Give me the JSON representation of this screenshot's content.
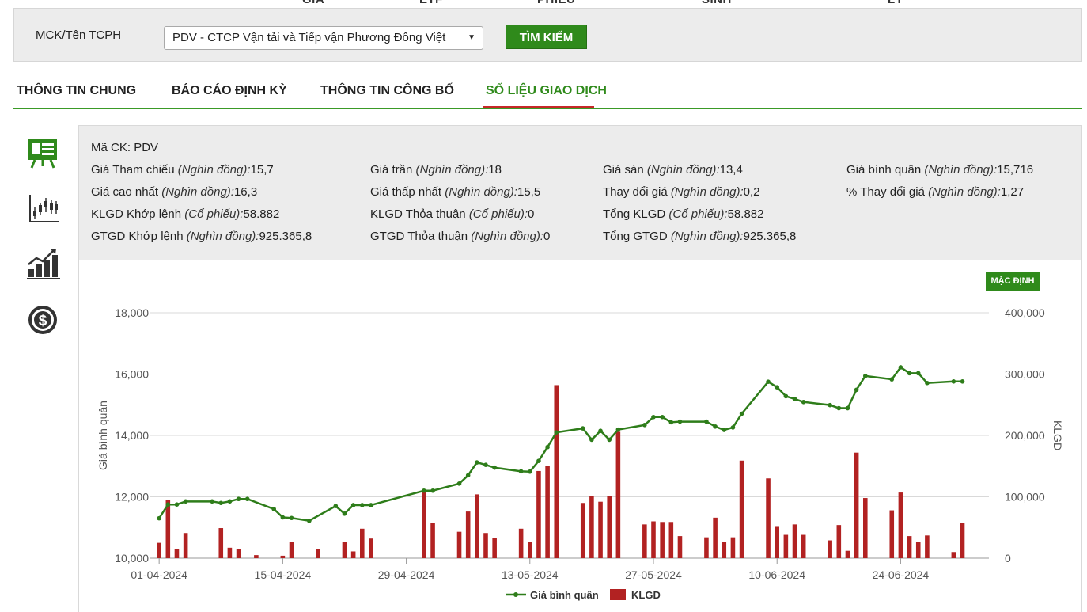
{
  "top_nav": [
    "GIÁ",
    "ETF",
    "PHIẾU",
    "SINH",
    "LÝ"
  ],
  "search": {
    "label": "MCK/Tên TCPH",
    "selected": "PDV - CTCP Vận tải và Tiếp vận Phương Đông Việt",
    "button": "TÌM KIẾM"
  },
  "tabs": [
    {
      "label": "THÔNG TIN CHUNG",
      "active": false
    },
    {
      "label": "BÁO CÁO ĐỊNH KỲ",
      "active": false
    },
    {
      "label": "THÔNG TIN CÔNG BỐ",
      "active": false
    },
    {
      "label": "SỐ LIỆU GIAO DỊCH",
      "active": true
    }
  ],
  "side_icons": [
    "presentation-icon",
    "candlestick-chart-icon",
    "growth-bars-icon",
    "dollar-circle-icon"
  ],
  "info": {
    "code_label": "Mã CK:",
    "code": "PDV",
    "rows": [
      [
        {
          "label": "Giá Tham chiếu",
          "unit": "(Nghìn đồng):",
          "value": "15,7"
        },
        {
          "label": "Giá trần",
          "unit": "(Nghìn đồng):",
          "value": "18"
        },
        {
          "label": "Giá sàn",
          "unit": "(Nghìn đồng):",
          "value": "13,4"
        },
        {
          "label": "Giá bình quân",
          "unit": "(Nghìn đồng):",
          "value": "15,716"
        }
      ],
      [
        {
          "label": "Giá cao nhất",
          "unit": "(Nghìn đồng):",
          "value": "16,3"
        },
        {
          "label": "Giá thấp nhất",
          "unit": "(Nghìn đồng):",
          "value": "15,5"
        },
        {
          "label": "Thay đổi giá",
          "unit": "(Nghìn đồng):",
          "value": "0,2"
        },
        {
          "label": "% Thay đổi giá",
          "unit": "(Nghìn đồng):",
          "value": "1,27"
        }
      ],
      [
        {
          "label": "KLGD Khớp lệnh",
          "unit": "(Cổ phiếu):",
          "value": "58.882"
        },
        {
          "label": "KLGD Thỏa thuận",
          "unit": "(Cổ phiếu):",
          "value": "0"
        },
        {
          "label": "Tổng KLGD",
          "unit": "(Cổ phiếu):",
          "value": "58.882"
        }
      ],
      [
        {
          "label": "GTGD Khớp lệnh",
          "unit": "(Nghìn đồng):",
          "value": "925.365,8"
        },
        {
          "label": "GTGD Thỏa thuận",
          "unit": "(Nghìn đồng):",
          "value": "0"
        },
        {
          "label": "Tổng GTGD",
          "unit": "(Nghìn đồng):",
          "value": "925.365,8"
        }
      ]
    ]
  },
  "chart_controls": {
    "default_button": "MẶC ĐỊNH"
  },
  "colors": {
    "line": "#2e7d1a",
    "bar": "#b22222",
    "accent": "#2f8a1b",
    "tab_underline": "#c62828"
  },
  "chart_data": {
    "type": "bar+line",
    "x_ticks": [
      "01-04-2024",
      "15-04-2024",
      "29-04-2024",
      "13-05-2024",
      "27-05-2024",
      "10-06-2024",
      "24-06-2024"
    ],
    "x_range_days": [
      -1,
      94
    ],
    "y_left": {
      "label": "Giá bình quân",
      "range": [
        10000,
        18000
      ],
      "ticks": [
        "10,000",
        "12,000",
        "14,000",
        "16,000",
        "18,000"
      ]
    },
    "y_right": {
      "label": "KLGD",
      "range": [
        0,
        400000
      ],
      "ticks": [
        "0",
        "100,000",
        "200,000",
        "300,000",
        "400,000"
      ]
    },
    "grid": true,
    "legend_position": "bottom",
    "series": [
      {
        "name": "Giá bình quân",
        "kind": "line",
        "axis": "left",
        "points": [
          [
            0,
            11300
          ],
          [
            1,
            11750
          ],
          [
            2,
            11750
          ],
          [
            3,
            11850
          ],
          [
            6,
            11850
          ],
          [
            7,
            11800
          ],
          [
            8,
            11850
          ],
          [
            9,
            11930
          ],
          [
            10,
            11930
          ],
          [
            13,
            11600
          ],
          [
            14,
            11330
          ],
          [
            15,
            11310
          ],
          [
            17,
            11220
          ],
          [
            20,
            11700
          ],
          [
            21,
            11450
          ],
          [
            22,
            11730
          ],
          [
            23,
            11730
          ],
          [
            24,
            11730
          ],
          [
            30,
            12200
          ],
          [
            31,
            12200
          ],
          [
            34,
            12430
          ],
          [
            35,
            12700
          ],
          [
            36,
            13120
          ],
          [
            37,
            13040
          ],
          [
            38,
            12950
          ],
          [
            41,
            12830
          ],
          [
            42,
            12820
          ],
          [
            43,
            13170
          ],
          [
            44,
            13620
          ],
          [
            45,
            14100
          ],
          [
            48,
            14230
          ],
          [
            49,
            13860
          ],
          [
            50,
            14150
          ],
          [
            51,
            13860
          ],
          [
            52,
            14190
          ],
          [
            55,
            14340
          ],
          [
            56,
            14600
          ],
          [
            57,
            14600
          ],
          [
            58,
            14430
          ],
          [
            59,
            14450
          ],
          [
            62,
            14450
          ],
          [
            63,
            14290
          ],
          [
            64,
            14180
          ],
          [
            65,
            14260
          ],
          [
            66,
            14710
          ],
          [
            69,
            15750
          ],
          [
            70,
            15570
          ],
          [
            71,
            15280
          ],
          [
            72,
            15190
          ],
          [
            73,
            15090
          ],
          [
            76,
            14990
          ],
          [
            77,
            14890
          ],
          [
            78,
            14890
          ],
          [
            79,
            15490
          ],
          [
            80,
            15940
          ],
          [
            83,
            15830
          ],
          [
            84,
            16220
          ],
          [
            85,
            16030
          ],
          [
            86,
            16030
          ],
          [
            87,
            15710
          ],
          [
            90,
            15760
          ],
          [
            91,
            15760
          ]
        ]
      },
      {
        "name": "KLGD",
        "kind": "bar",
        "axis": "right",
        "points": [
          [
            0,
            25000
          ],
          [
            1,
            95000
          ],
          [
            2,
            15000
          ],
          [
            3,
            41000
          ],
          [
            7,
            49000
          ],
          [
            8,
            17000
          ],
          [
            9,
            15000
          ],
          [
            11,
            5000
          ],
          [
            14,
            4000
          ],
          [
            15,
            27000
          ],
          [
            18,
            15000
          ],
          [
            21,
            27000
          ],
          [
            22,
            11000
          ],
          [
            23,
            48000
          ],
          [
            24,
            32000
          ],
          [
            30,
            108000
          ],
          [
            31,
            57000
          ],
          [
            34,
            43000
          ],
          [
            35,
            76000
          ],
          [
            36,
            104000
          ],
          [
            37,
            41000
          ],
          [
            38,
            33000
          ],
          [
            41,
            48000
          ],
          [
            42,
            27000
          ],
          [
            43,
            142000
          ],
          [
            44,
            150000
          ],
          [
            45,
            282000
          ],
          [
            48,
            90000
          ],
          [
            49,
            101000
          ],
          [
            50,
            92000
          ],
          [
            51,
            101000
          ],
          [
            52,
            206000
          ],
          [
            55,
            55000
          ],
          [
            56,
            60000
          ],
          [
            57,
            59000
          ],
          [
            58,
            59000
          ],
          [
            59,
            36000
          ],
          [
            62,
            34000
          ],
          [
            63,
            66000
          ],
          [
            64,
            26000
          ],
          [
            65,
            34000
          ],
          [
            66,
            159000
          ],
          [
            69,
            130000
          ],
          [
            70,
            51000
          ],
          [
            71,
            38000
          ],
          [
            72,
            55000
          ],
          [
            73,
            38000
          ],
          [
            76,
            29000
          ],
          [
            77,
            54000
          ],
          [
            78,
            12000
          ],
          [
            79,
            172000
          ],
          [
            80,
            98000
          ],
          [
            83,
            78000
          ],
          [
            84,
            107000
          ],
          [
            85,
            36000
          ],
          [
            86,
            27000
          ],
          [
            87,
            37000
          ],
          [
            90,
            10000
          ],
          [
            91,
            57000
          ]
        ]
      }
    ]
  }
}
